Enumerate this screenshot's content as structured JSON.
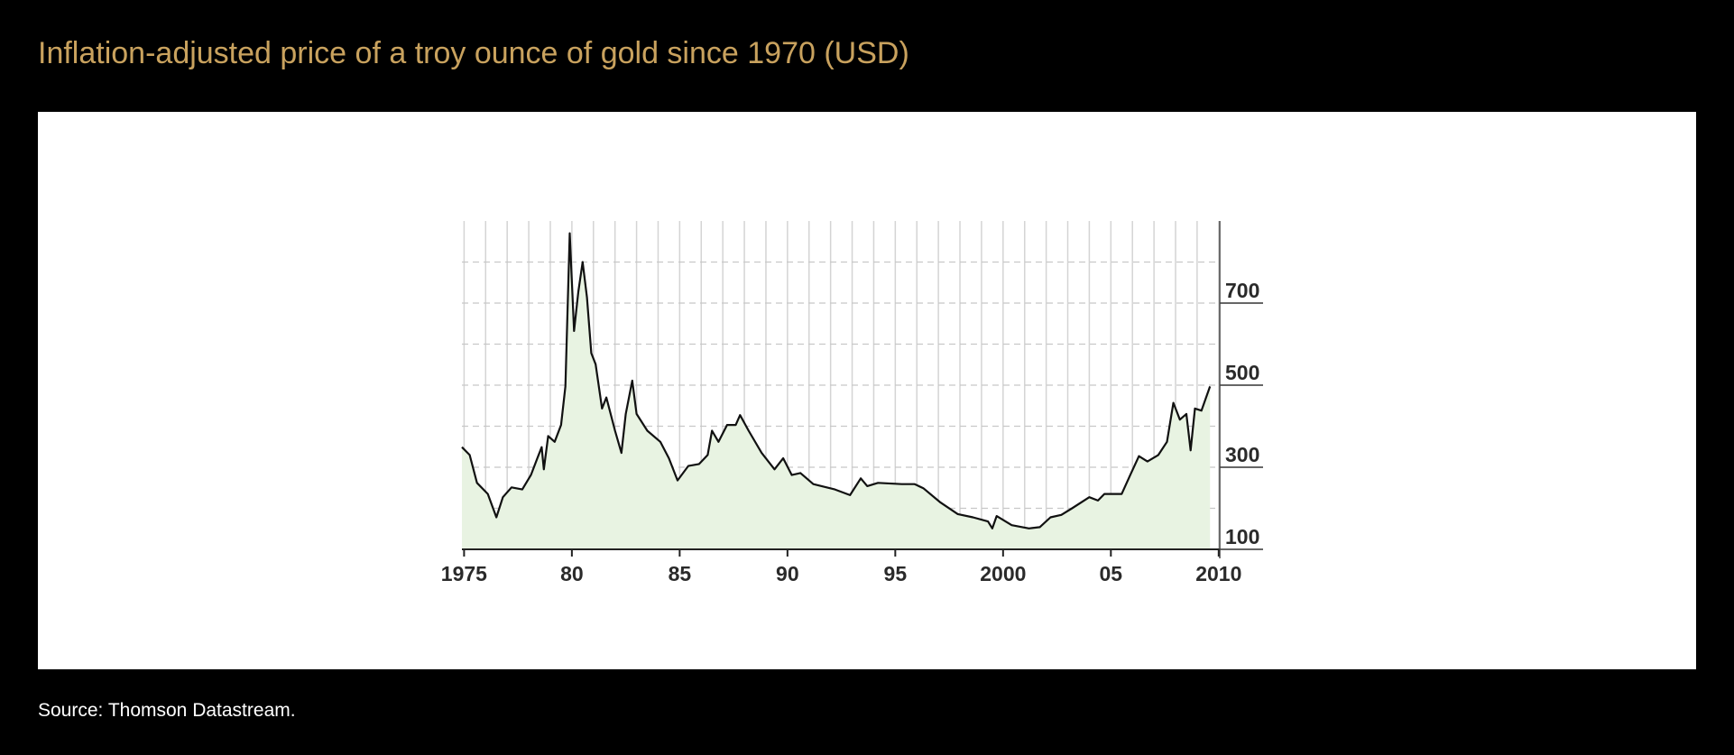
{
  "chart_data": {
    "type": "line",
    "title": "Inflation-adjusted price of a troy ounce of gold since 1970 (USD)",
    "source": "Source: Thomson Datastream.",
    "color": "#111111",
    "fill_color": "#e8f3e2",
    "x": [
      1974.9,
      1975.26,
      1975.6,
      1976.1,
      1976.5,
      1976.8,
      1977.2,
      1977.7,
      1978.1,
      1978.4,
      1978.6,
      1978.7,
      1978.9,
      1979.2,
      1979.5,
      1979.7,
      1979.9,
      1980.1,
      1980.3,
      1980.5,
      1980.7,
      1980.9,
      1981.1,
      1981.4,
      1981.6,
      1982.0,
      1982.3,
      1982.5,
      1982.8,
      1983.0,
      1983.5,
      1984.1,
      1984.5,
      1984.9,
      1985.4,
      1985.9,
      1986.3,
      1986.5,
      1986.8,
      1987.2,
      1987.6,
      1987.8,
      1988.2,
      1988.8,
      1989.4,
      1989.8,
      1990.2,
      1990.6,
      1991.2,
      1992.2,
      1992.9,
      1993.4,
      1993.7,
      1994.2,
      1995.3,
      1995.9,
      1996.3,
      1997.1,
      1997.9,
      1998.6,
      1999.3,
      1999.5,
      1999.7,
      2000.4,
      2001.2,
      2001.7,
      2002.2,
      2002.7,
      2003.2,
      2004.0,
      2004.4,
      2004.7,
      2005.5,
      2005.9,
      2006.3,
      2006.7,
      2007.2,
      2007.6,
      2007.9,
      2008.2,
      2008.5,
      2008.7,
      2008.9,
      2009.2,
      2009.6
    ],
    "values": [
      349,
      330,
      262,
      235,
      178,
      227,
      251,
      246,
      281,
      322,
      349,
      295,
      376,
      362,
      403,
      497,
      870,
      632,
      727,
      800,
      714,
      578,
      551,
      443,
      470,
      389,
      335,
      430,
      511,
      430,
      389,
      362,
      322,
      268,
      303,
      308,
      330,
      389,
      362,
      403,
      403,
      427,
      389,
      335,
      295,
      322,
      281,
      286,
      259,
      246,
      232,
      273,
      254,
      262,
      259,
      259,
      249,
      214,
      186,
      178,
      168,
      151,
      181,
      159,
      151,
      154,
      178,
      184,
      200,
      227,
      219,
      235,
      235,
      281,
      327,
      314,
      330,
      362,
      457,
      416,
      430,
      341,
      443,
      438,
      497
    ],
    "xlim": [
      1974.9,
      2010.05
    ],
    "ylim": [
      100,
      900
    ],
    "xticks": [
      {
        "value": 1975,
        "label": "1975"
      },
      {
        "value": 1980,
        "label": "80"
      },
      {
        "value": 1985,
        "label": "85"
      },
      {
        "value": 1990,
        "label": "90"
      },
      {
        "value": 1995,
        "label": "95"
      },
      {
        "value": 2000,
        "label": "2000"
      },
      {
        "value": 2005,
        "label": "05"
      },
      {
        "value": 2010,
        "label": "2010"
      }
    ],
    "yticks": [
      100,
      300,
      500,
      700
    ],
    "minor_yticks": [
      200,
      400,
      600,
      800
    ],
    "grid": true
  }
}
